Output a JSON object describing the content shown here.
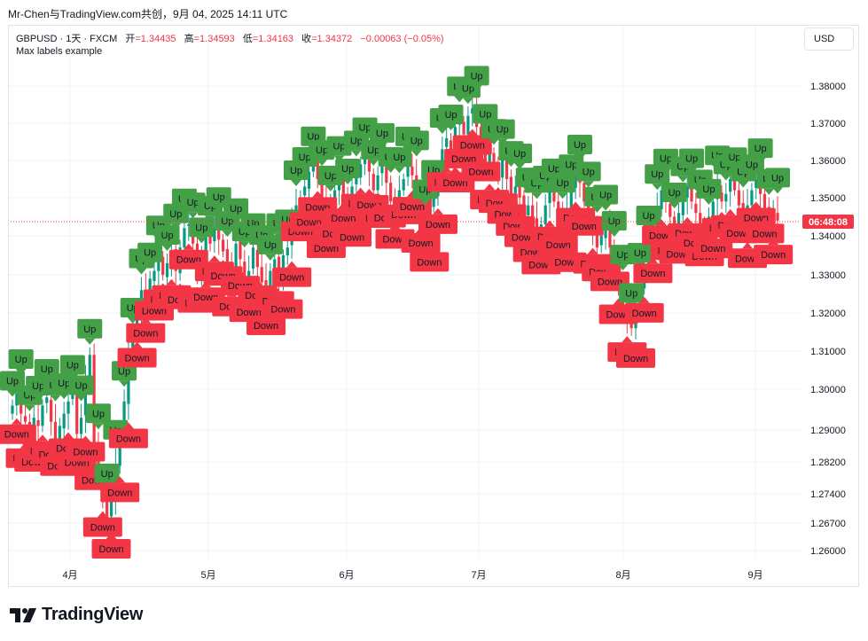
{
  "header": {
    "topline": "Mr-Chen与TradingView.com共创，9月 04, 2025 14:11 UTC"
  },
  "legend": {
    "symbol": "GBPUSD · 1天 · FXCM",
    "open_label": "开",
    "open": "=1.34435",
    "high_label": "高",
    "high": "=1.34593",
    "low_label": "低",
    "low": "=1.34163",
    "close_label": "收",
    "close": "=1.34372",
    "change": "−0.00063 (−0.05%)",
    "indicator": "Max labels example"
  },
  "currency_button": "USD",
  "price_tag": "06:48:08",
  "brand": "TradingView",
  "colors": {
    "up": "#089981",
    "down": "#f23645",
    "label_up": "#43a047",
    "label_down": "#f23645",
    "grid": "#f0f3fa"
  },
  "chart_data": {
    "type": "candlestick",
    "y_axis_ticks": [
      "1.38000",
      "1.37000",
      "1.36000",
      "1.35000",
      "1.34000",
      "1.33000",
      "1.32000",
      "1.31000",
      "1.30000",
      "1.29000",
      "1.28200",
      "1.27400",
      "1.26700",
      "1.26000"
    ],
    "x_axis_ticks": [
      "4月",
      "5月",
      "6月",
      "7月",
      "8月",
      "9月"
    ],
    "last_close": 1.34372,
    "label_up_text": "Up",
    "label_down_text": "Down",
    "closes": [
      1.296,
      1.299,
      1.294,
      1.292,
      1.289,
      1.293,
      1.291,
      1.296,
      1.298,
      1.292,
      1.287,
      1.291,
      1.294,
      1.297,
      1.3,
      1.289,
      1.293,
      1.302,
      1.309,
      1.285,
      1.279,
      1.272,
      1.268,
      1.274,
      1.281,
      1.288,
      1.297,
      1.309,
      1.315,
      1.321,
      1.326,
      1.324,
      1.329,
      1.331,
      1.334,
      1.33,
      1.333,
      1.336,
      1.331,
      1.337,
      1.342,
      1.343,
      1.338,
      1.33,
      1.334,
      1.341,
      1.338,
      1.342,
      1.339,
      1.336,
      1.333,
      1.33,
      1.338,
      1.334,
      1.329,
      1.331,
      1.337,
      1.332,
      1.328,
      1.326,
      1.331,
      1.334,
      1.328,
      1.335,
      1.337,
      1.344,
      1.348,
      1.35,
      1.353,
      1.357,
      1.36,
      1.355,
      1.35,
      1.346,
      1.349,
      1.352,
      1.355,
      1.351,
      1.348,
      1.353,
      1.356,
      1.359,
      1.361,
      1.357,
      1.352,
      1.356,
      1.359,
      1.354,
      1.349,
      1.347,
      1.352,
      1.355,
      1.359,
      1.356,
      1.348,
      1.345,
      1.342,
      1.347,
      1.351,
      1.356,
      1.363,
      1.366,
      1.362,
      1.369,
      1.371,
      1.367,
      1.372,
      1.374,
      1.369,
      1.364,
      1.359,
      1.362,
      1.358,
      1.356,
      1.36,
      1.355,
      1.351,
      1.353,
      1.35,
      1.346,
      1.348,
      1.344,
      1.34,
      1.343,
      1.348,
      1.352,
      1.349,
      1.345,
      1.343,
      1.347,
      1.352,
      1.356,
      1.354,
      1.349,
      1.345,
      1.341,
      1.337,
      1.34,
      1.343,
      1.337,
      1.331,
      1.327,
      1.322,
      1.319,
      1.316,
      1.322,
      1.327,
      1.332,
      1.338,
      1.343,
      1.347,
      1.352,
      1.349,
      1.345,
      1.342,
      1.346,
      1.35,
      1.353,
      1.349,
      1.346,
      1.343,
      1.341,
      1.345,
      1.349,
      1.352,
      1.349,
      1.351,
      1.355,
      1.352,
      1.348,
      1.344,
      1.348,
      1.352,
      1.355,
      1.351,
      1.347,
      1.344,
      1.346,
      1.344
    ]
  }
}
